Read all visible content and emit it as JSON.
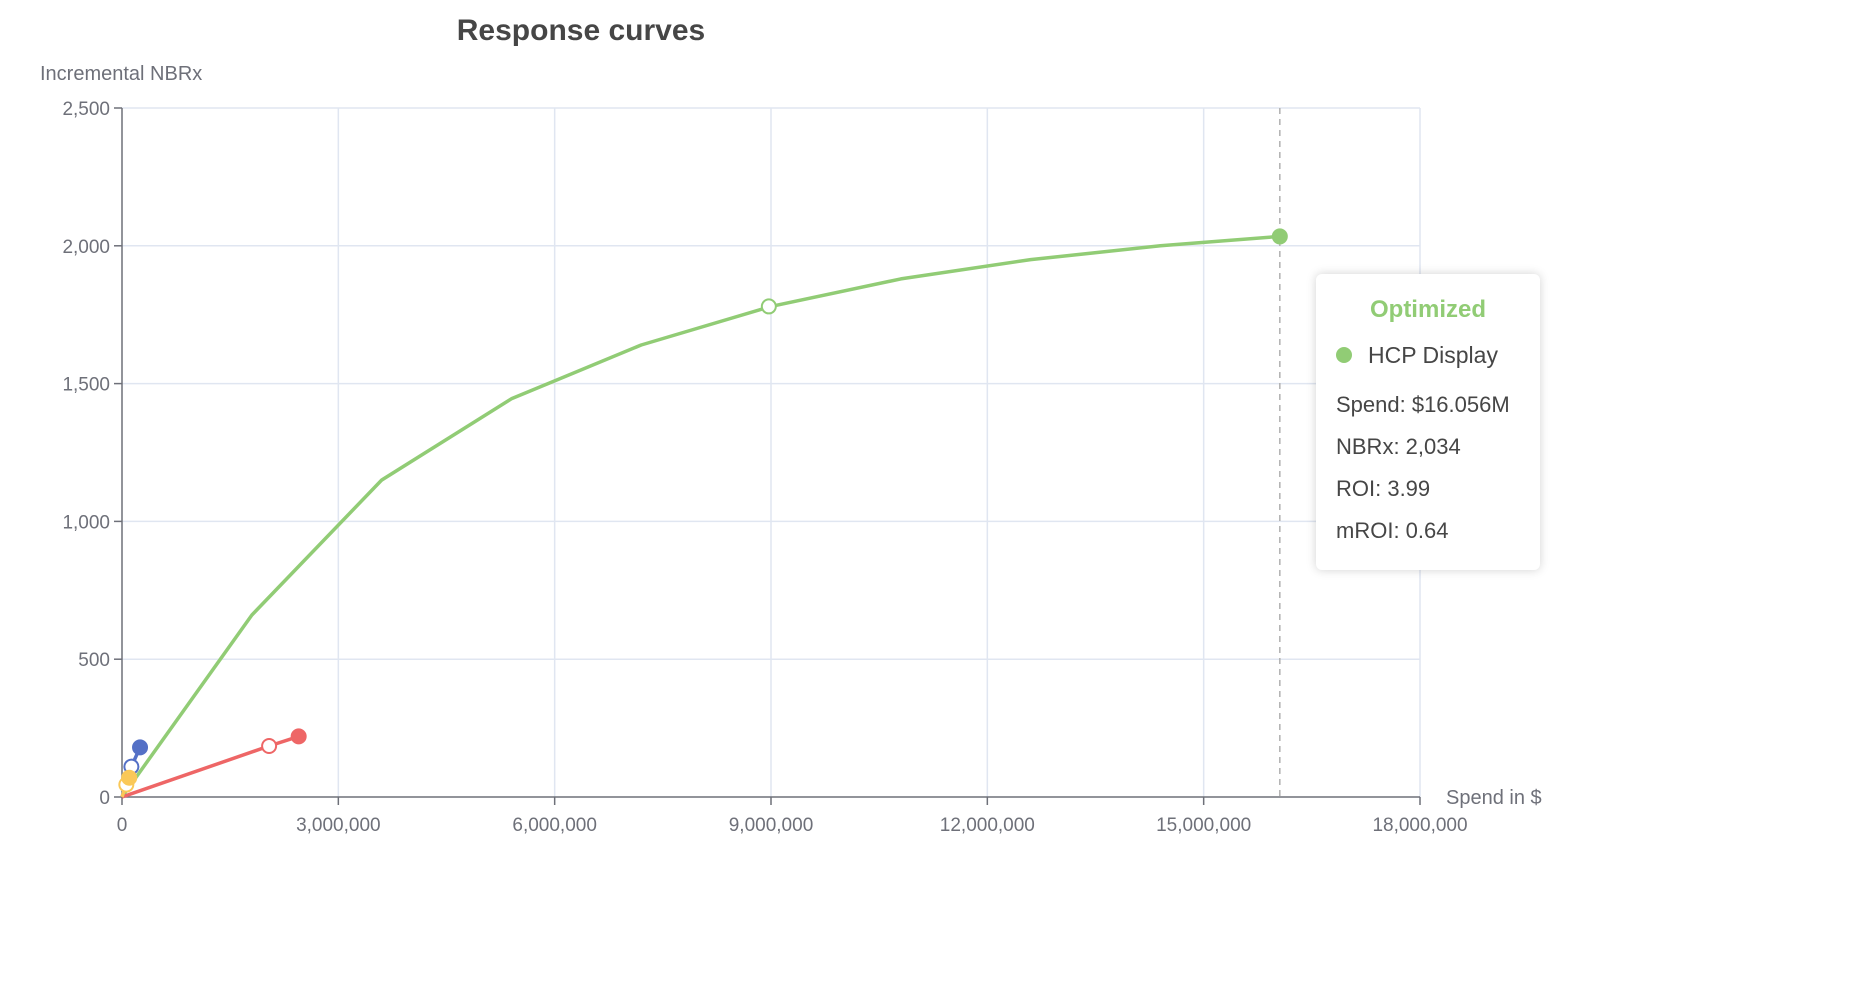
{
  "chart_data": {
    "type": "line",
    "title": "Response curves",
    "xlabel": "Spend in $",
    "ylabel": "Incremental NBRx",
    "xlim": [
      0,
      18000000
    ],
    "ylim": [
      0,
      2500
    ],
    "x_ticks": [
      0,
      3000000,
      6000000,
      9000000,
      12000000,
      15000000,
      18000000
    ],
    "x_tick_labels": [
      "0",
      "3,000,000",
      "6,000,000",
      "9,000,000",
      "12,000,000",
      "15,000,000",
      "18,000,000"
    ],
    "y_ticks": [
      0,
      500,
      1000,
      1500,
      2000,
      2500
    ],
    "y_tick_labels": [
      "0",
      "500",
      "1,000",
      "1,500",
      "2,000",
      "2,500"
    ],
    "grid": true,
    "crosshair_x": 16056000,
    "series": [
      {
        "color": "#91cc75",
        "x": [
          0,
          1800000,
          3600000,
          5400000,
          7200000,
          9000000,
          10800000,
          12600000,
          14400000,
          16056000
        ],
        "y": [
          0,
          660,
          1150,
          1445,
          1640,
          1780,
          1880,
          1950,
          2000,
          2034
        ],
        "current": {
          "x": 8970000,
          "y": 1780
        },
        "optimized": {
          "x": 16056000,
          "y": 2034
        }
      },
      {
        "color": "#ee6666",
        "x": [
          0,
          2040000,
          2450000
        ],
        "y": [
          0,
          185,
          220
        ],
        "current": {
          "x": 2040000,
          "y": 185
        },
        "optimized": {
          "x": 2450000,
          "y": 220
        }
      },
      {
        "color": "#5470c6",
        "x": [
          0,
          130000,
          250000
        ],
        "y": [
          0,
          110,
          180
        ],
        "current": {
          "x": 130000,
          "y": 110
        },
        "optimized": {
          "x": 250000,
          "y": 180
        }
      },
      {
        "color": "#fac858",
        "x": [
          0,
          60000,
          100000
        ],
        "y": [
          0,
          45,
          70
        ],
        "current": {
          "x": 60000,
          "y": 45
        },
        "optimized": {
          "x": 100000,
          "y": 70
        }
      }
    ]
  },
  "tooltip": {
    "header": "Optimized",
    "header_color": "#91cc75",
    "series_name": "HCP Display",
    "dot_color": "#91cc75",
    "spend": "Spend: $16.056M",
    "nbrx": "NBRx: 2,034",
    "roi": "ROI: 3.99",
    "mroi": "mROI: 0.64"
  }
}
